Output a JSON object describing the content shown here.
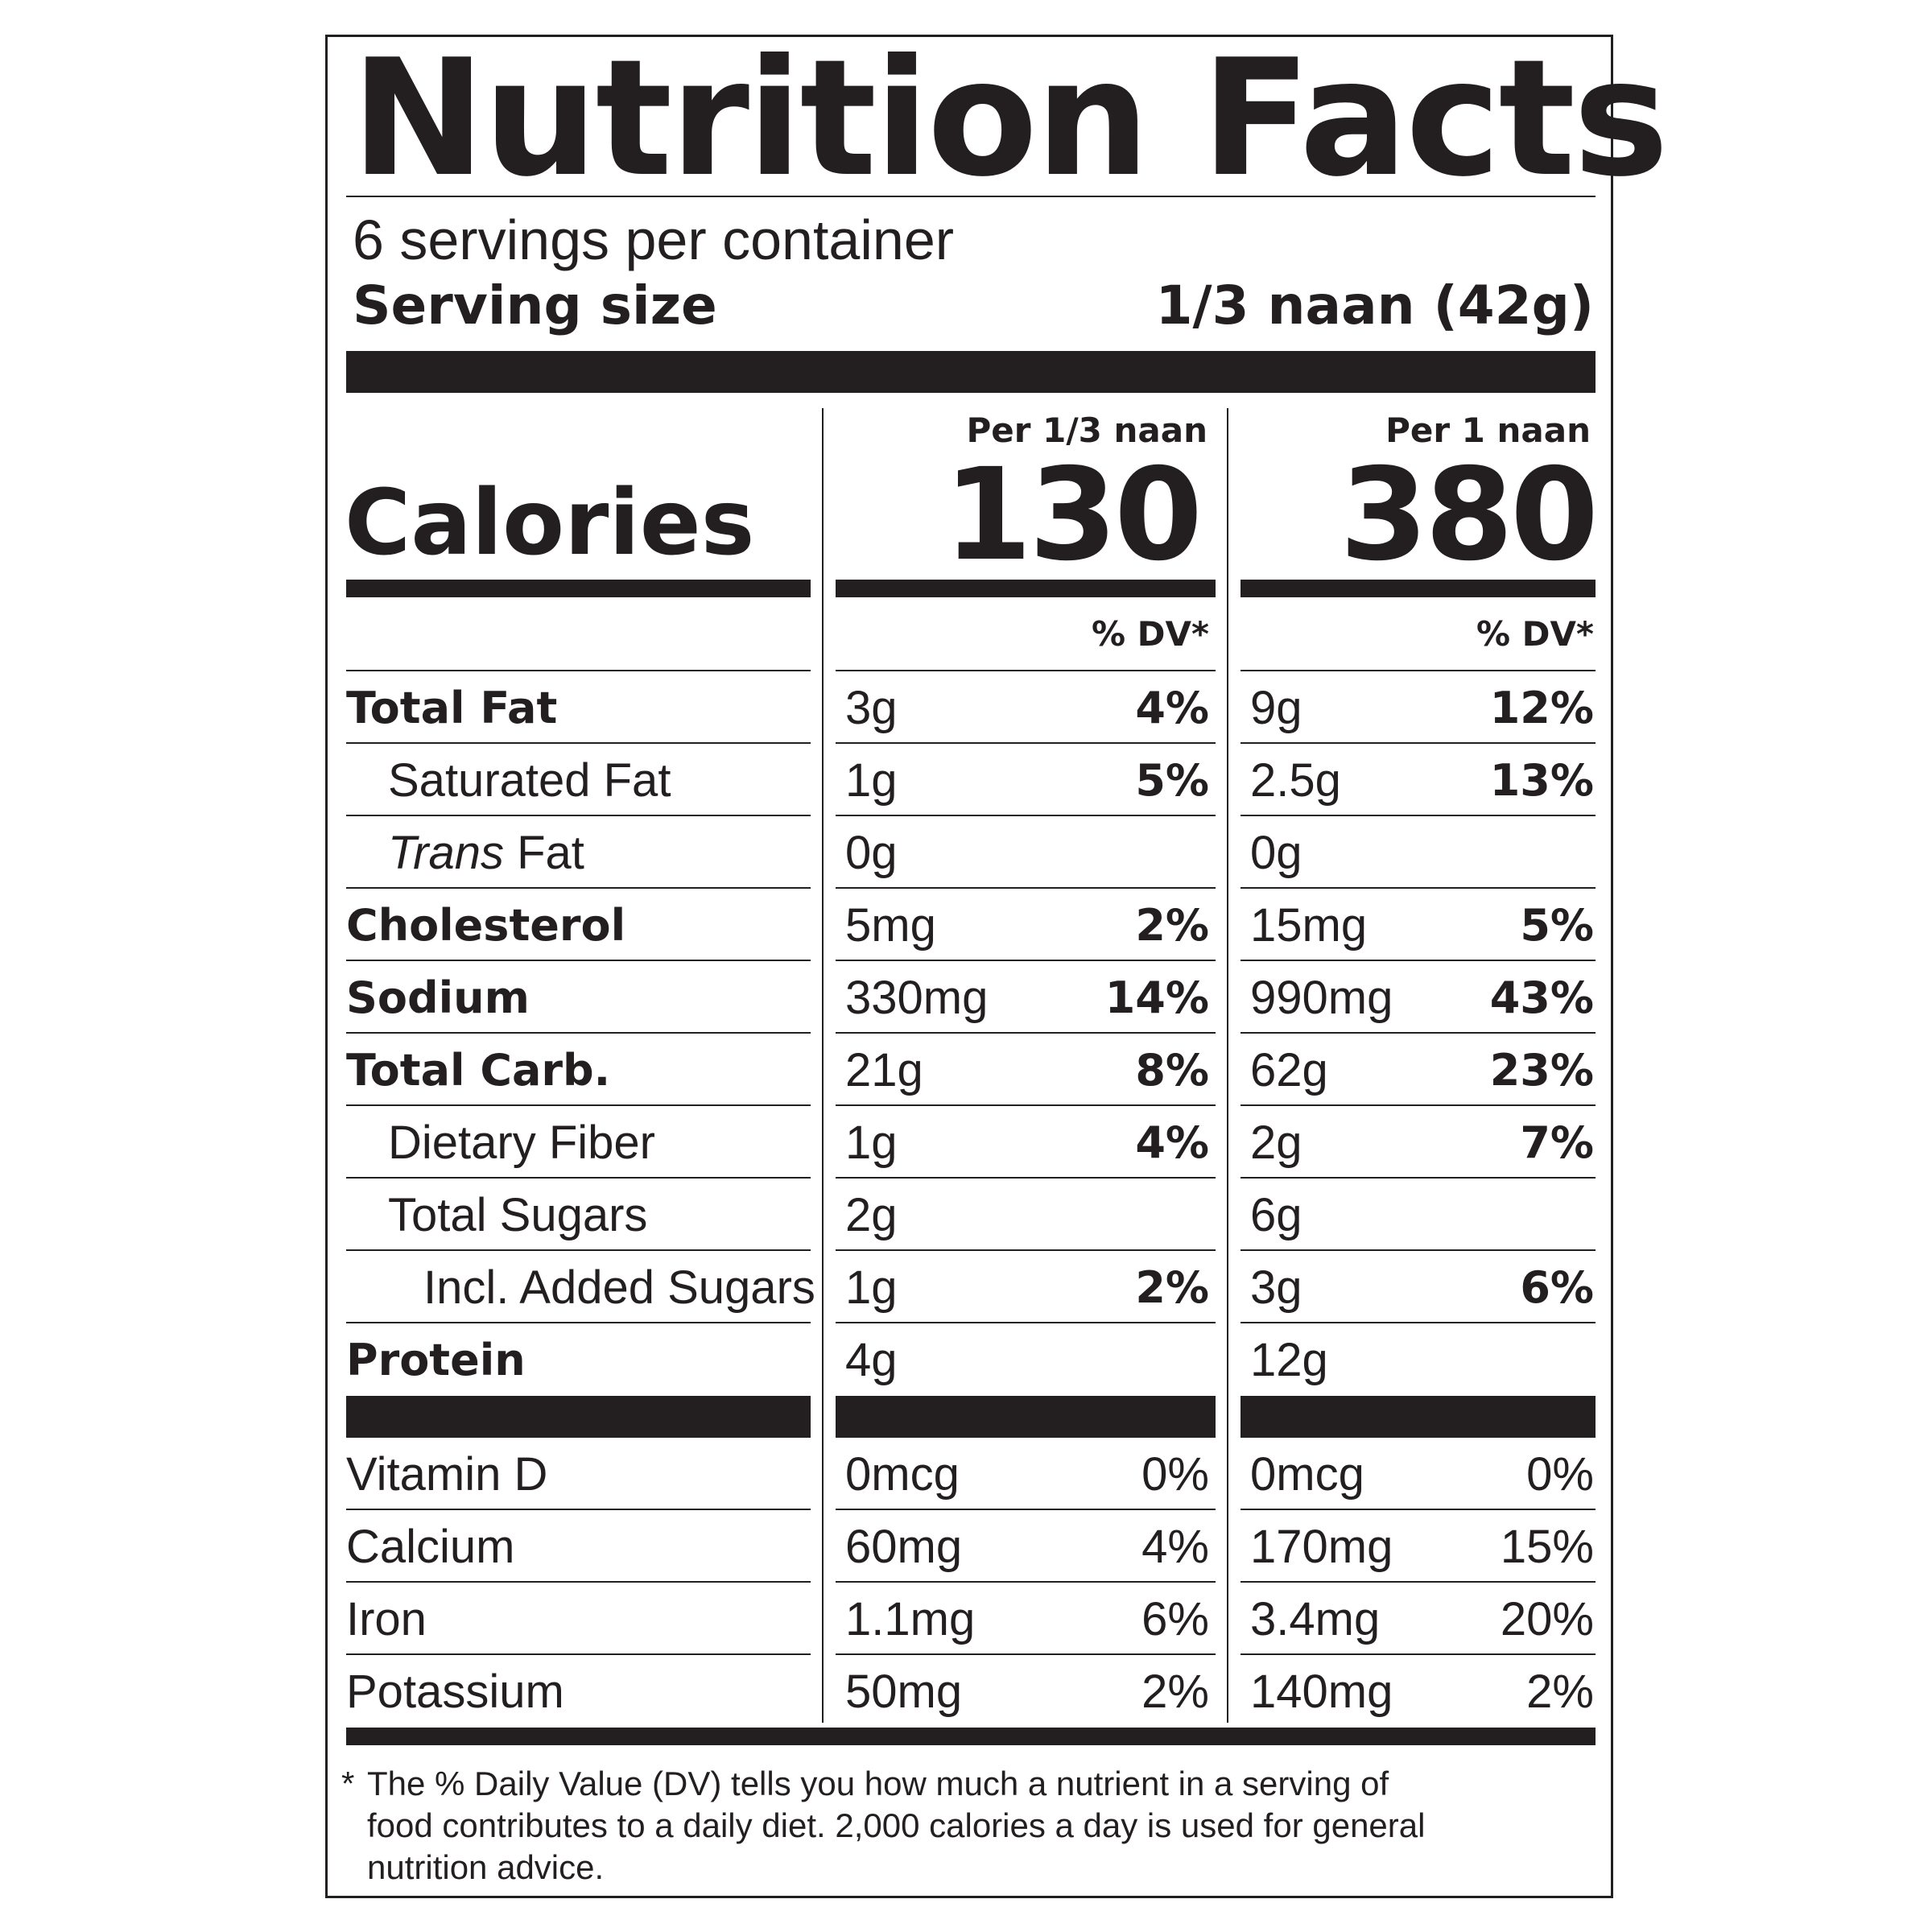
{
  "title": "Nutrition Facts",
  "servings_per_container": "6 servings per container",
  "serving_size_label": "Serving size",
  "serving_size_value": "1/3 naan (42g)",
  "col1_header": "Per 1/3 naan",
  "col2_header": "Per 1 naan",
  "calories_label": "Calories",
  "calories_col1": "130",
  "calories_col2": "380",
  "dv_header": "% DV*",
  "nutrients": [
    {
      "name": "Total Fat",
      "amount1": "3g",
      "dv1": "4%",
      "amount2": "9g",
      "dv2": "12%"
    },
    {
      "name": "Saturated Fat",
      "amount1": "1g",
      "dv1": "5%",
      "amount2": "2.5g",
      "dv2": "13%"
    },
    {
      "name_italic": "Trans",
      "name_rest": " Fat",
      "amount1": "0g",
      "dv1": "",
      "amount2": "0g",
      "dv2": ""
    },
    {
      "name": "Cholesterol",
      "amount1": "5mg",
      "dv1": "2%",
      "amount2": "15mg",
      "dv2": "5%"
    },
    {
      "name": "Sodium",
      "amount1": "330mg",
      "dv1": "14%",
      "amount2": "990mg",
      "dv2": "43%"
    },
    {
      "name": "Total Carb.",
      "amount1": "21g",
      "dv1": "8%",
      "amount2": "62g",
      "dv2": "23%"
    },
    {
      "name": "Dietary Fiber",
      "amount1": "1g",
      "dv1": "4%",
      "amount2": "2g",
      "dv2": "7%"
    },
    {
      "name": "Total Sugars",
      "amount1": "2g",
      "dv1": "",
      "amount2": "6g",
      "dv2": ""
    },
    {
      "name": "Incl. Added Sugars",
      "amount1": "1g",
      "dv1": "2%",
      "amount2": "3g",
      "dv2": "6%"
    },
    {
      "name": "Protein",
      "amount1": "4g",
      "dv1": "",
      "amount2": "12g",
      "dv2": ""
    }
  ],
  "vitamins": [
    {
      "name": "Vitamin D",
      "amount1": "0mcg",
      "dv1": "0%",
      "amount2": "0mcg",
      "dv2": "0%"
    },
    {
      "name": "Calcium",
      "amount1": "60mg",
      "dv1": "4%",
      "amount2": "170mg",
      "dv2": "15%"
    },
    {
      "name": "Iron",
      "amount1": "1.1mg",
      "dv1": "6%",
      "amount2": "3.4mg",
      "dv2": "20%"
    },
    {
      "name": "Potassium",
      "amount1": "50mg",
      "dv1": "2%",
      "amount2": "140mg",
      "dv2": "2%"
    }
  ],
  "footnote_star": "*",
  "footnote_line1": "The % Daily Value (DV) tells you how much a nutrient in a serving of",
  "footnote_line2": "food contributes to a daily diet. 2,000 calories a day is used for general",
  "footnote_line3": "nutrition advice."
}
